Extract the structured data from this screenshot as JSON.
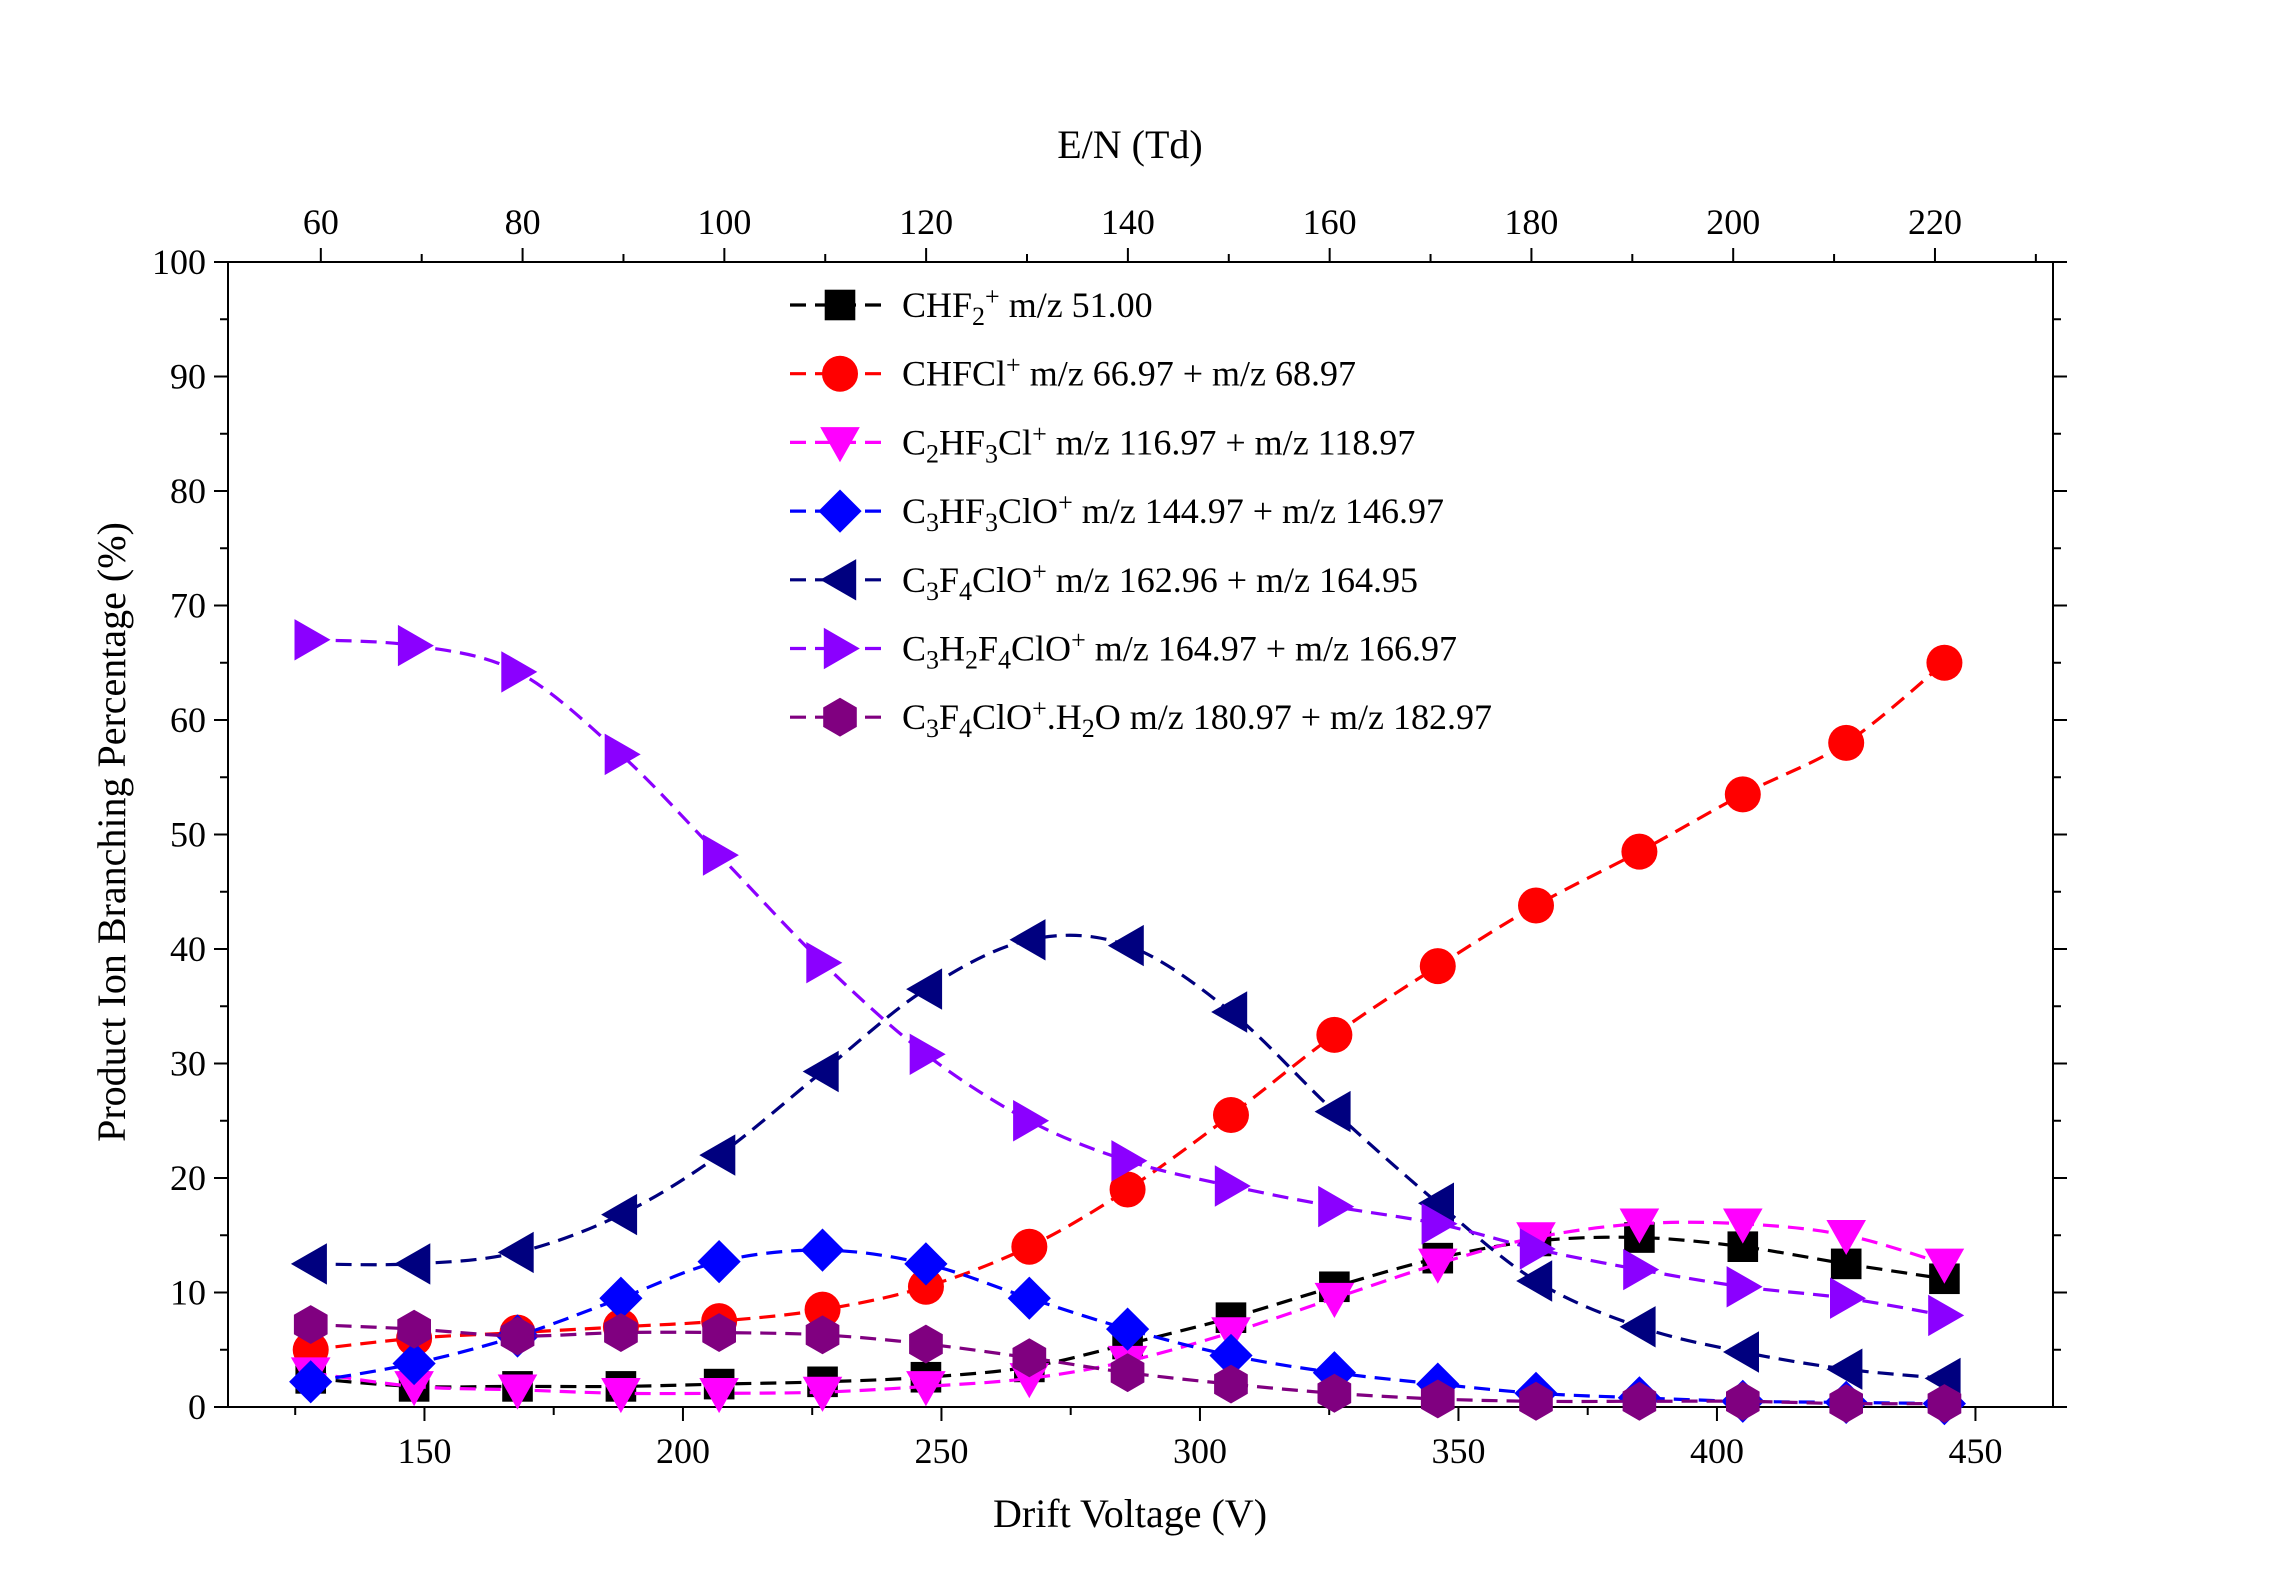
{
  "chart_data": {
    "type": "scatter",
    "title": "",
    "xlabel": "Drift Voltage (V)",
    "ylabel": "Product Ion Branching Percentage (%)",
    "x2label": "E/N (Td)",
    "xlim": [
      112,
      465
    ],
    "ylim": [
      0,
      100
    ],
    "x2lim": [
      50.8,
      231.7
    ],
    "xticks": [
      "150",
      "200",
      "250",
      "300",
      "350",
      "400",
      "450"
    ],
    "yticks": [
      "0",
      "10",
      "20",
      "30",
      "40",
      "50",
      "60",
      "70",
      "80",
      "90",
      "100"
    ],
    "x2ticks": [
      "60",
      "80",
      "100",
      "120",
      "140",
      "160",
      "180",
      "200",
      "220"
    ],
    "grid": false,
    "legend_position": "top-center",
    "x": [
      128,
      148,
      168,
      188,
      207,
      227,
      247,
      267,
      286,
      306,
      326,
      346,
      365,
      385,
      405,
      425,
      444
    ],
    "series": [
      {
        "legend": [
          {
            "t": "CHF",
            "s": ""
          },
          {
            "t": "2",
            "s": "sub"
          },
          {
            "t": "+",
            "s": "sup"
          },
          {
            "t": " m/z 51.00",
            "s": ""
          }
        ],
        "color": "#000000",
        "marker": "square",
        "values": [
          2.5,
          1.8,
          1.8,
          1.8,
          2.0,
          2.2,
          2.6,
          3.5,
          5.5,
          7.8,
          10.5,
          13.0,
          14.5,
          14.8,
          14.0,
          12.5,
          11.2
        ]
      },
      {
        "legend": [
          {
            "t": "CHFCl",
            "s": ""
          },
          {
            "t": "+",
            "s": "sup"
          },
          {
            "t": " m/z 66.97 + m/z 68.97",
            "s": ""
          }
        ],
        "color": "#ff0000",
        "marker": "circle",
        "values": [
          5.0,
          6.0,
          6.5,
          7.0,
          7.5,
          8.5,
          10.5,
          14.0,
          19.0,
          25.5,
          32.5,
          38.5,
          43.8,
          48.5,
          53.5,
          58.0,
          65.0
        ]
      },
      {
        "legend": [
          {
            "t": "C",
            "s": ""
          },
          {
            "t": "2",
            "s": "sub"
          },
          {
            "t": "HF",
            "s": ""
          },
          {
            "t": "3",
            "s": "sub"
          },
          {
            "t": "Cl",
            "s": ""
          },
          {
            "t": "+",
            "s": "sup"
          },
          {
            "t": " m/z 116.97 + m/z 118.97",
            "s": ""
          }
        ],
        "color": "#ff00ff",
        "marker": "triangle-down",
        "values": [
          3.0,
          1.8,
          1.5,
          1.2,
          1.2,
          1.3,
          1.8,
          2.5,
          4.0,
          6.5,
          9.5,
          12.5,
          14.8,
          16.0,
          16.0,
          15.0,
          12.5
        ]
      },
      {
        "legend": [
          {
            "t": "C",
            "s": ""
          },
          {
            "t": "3",
            "s": "sub"
          },
          {
            "t": "HF",
            "s": ""
          },
          {
            "t": "3",
            "s": "sub"
          },
          {
            "t": "ClO",
            "s": ""
          },
          {
            "t": "+",
            "s": "sup"
          },
          {
            "t": " m/z 144.97 + m/z 146.97",
            "s": ""
          }
        ],
        "color": "#0000ff",
        "marker": "diamond",
        "values": [
          2.2,
          3.8,
          6.2,
          9.5,
          12.7,
          13.7,
          12.5,
          9.5,
          6.8,
          4.5,
          3.0,
          2.0,
          1.2,
          0.8,
          0.5,
          0.4,
          0.3
        ]
      },
      {
        "legend": [
          {
            "t": "C",
            "s": ""
          },
          {
            "t": "3",
            "s": "sub"
          },
          {
            "t": "F",
            "s": ""
          },
          {
            "t": "4",
            "s": "sub"
          },
          {
            "t": "ClO",
            "s": ""
          },
          {
            "t": "+",
            "s": "sup"
          },
          {
            "t": " m/z 162.96 + m/z 164.95",
            "s": ""
          }
        ],
        "color": "#00007f",
        "marker": "triangle-left",
        "values": [
          12.5,
          12.5,
          13.5,
          16.8,
          22.0,
          29.3,
          36.5,
          40.8,
          40.3,
          34.5,
          25.8,
          17.8,
          11.0,
          7.0,
          4.8,
          3.3,
          2.5
        ]
      },
      {
        "legend": [
          {
            "t": "C",
            "s": ""
          },
          {
            "t": "3",
            "s": "sub"
          },
          {
            "t": "H",
            "s": ""
          },
          {
            "t": "2",
            "s": "sub"
          },
          {
            "t": "F",
            "s": ""
          },
          {
            "t": "4",
            "s": "sub"
          },
          {
            "t": "ClO",
            "s": ""
          },
          {
            "t": "+",
            "s": "sup"
          },
          {
            "t": " m/z 164.97 + m/z 166.97",
            "s": ""
          }
        ],
        "color": "#8b00ff",
        "marker": "triangle-right",
        "values": [
          67.0,
          66.5,
          64.2,
          57.0,
          48.2,
          38.8,
          30.8,
          25.0,
          21.5,
          19.3,
          17.5,
          16.0,
          13.8,
          12.0,
          10.5,
          9.5,
          8.0
        ]
      },
      {
        "legend": [
          {
            "t": "C",
            "s": ""
          },
          {
            "t": "3",
            "s": "sub"
          },
          {
            "t": "F",
            "s": ""
          },
          {
            "t": "4",
            "s": "sub"
          },
          {
            "t": "ClO",
            "s": ""
          },
          {
            "t": "+",
            "s": "sup"
          },
          {
            "t": ".H",
            "s": ""
          },
          {
            "t": "2",
            "s": "sub"
          },
          {
            "t": "O  m/z 180.97 + m/z 182.97",
            "s": ""
          }
        ],
        "color": "#800080",
        "marker": "hexagon",
        "values": [
          7.2,
          6.8,
          6.2,
          6.5,
          6.5,
          6.3,
          5.5,
          4.3,
          3.0,
          2.0,
          1.2,
          0.7,
          0.5,
          0.5,
          0.5,
          0.3,
          0.3
        ]
      }
    ]
  }
}
